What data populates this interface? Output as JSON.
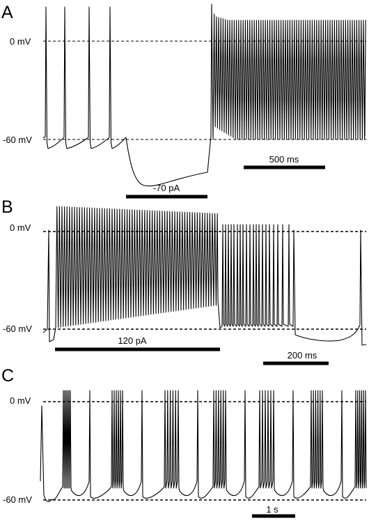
{
  "panels": [
    {
      "letter": "A",
      "zero_label": "0 mV",
      "rest_label": "-60 mV",
      "stim_label": "-70 pA",
      "scale_label": "500 ms"
    },
    {
      "letter": "B",
      "zero_label": "0 mV",
      "rest_label": "-60 mV",
      "stim_label": "120 pA",
      "scale_label": "200 ms"
    },
    {
      "letter": "C",
      "zero_label": "0 mV",
      "rest_label": "-60 mV",
      "scale_label": "1 s"
    }
  ]
}
